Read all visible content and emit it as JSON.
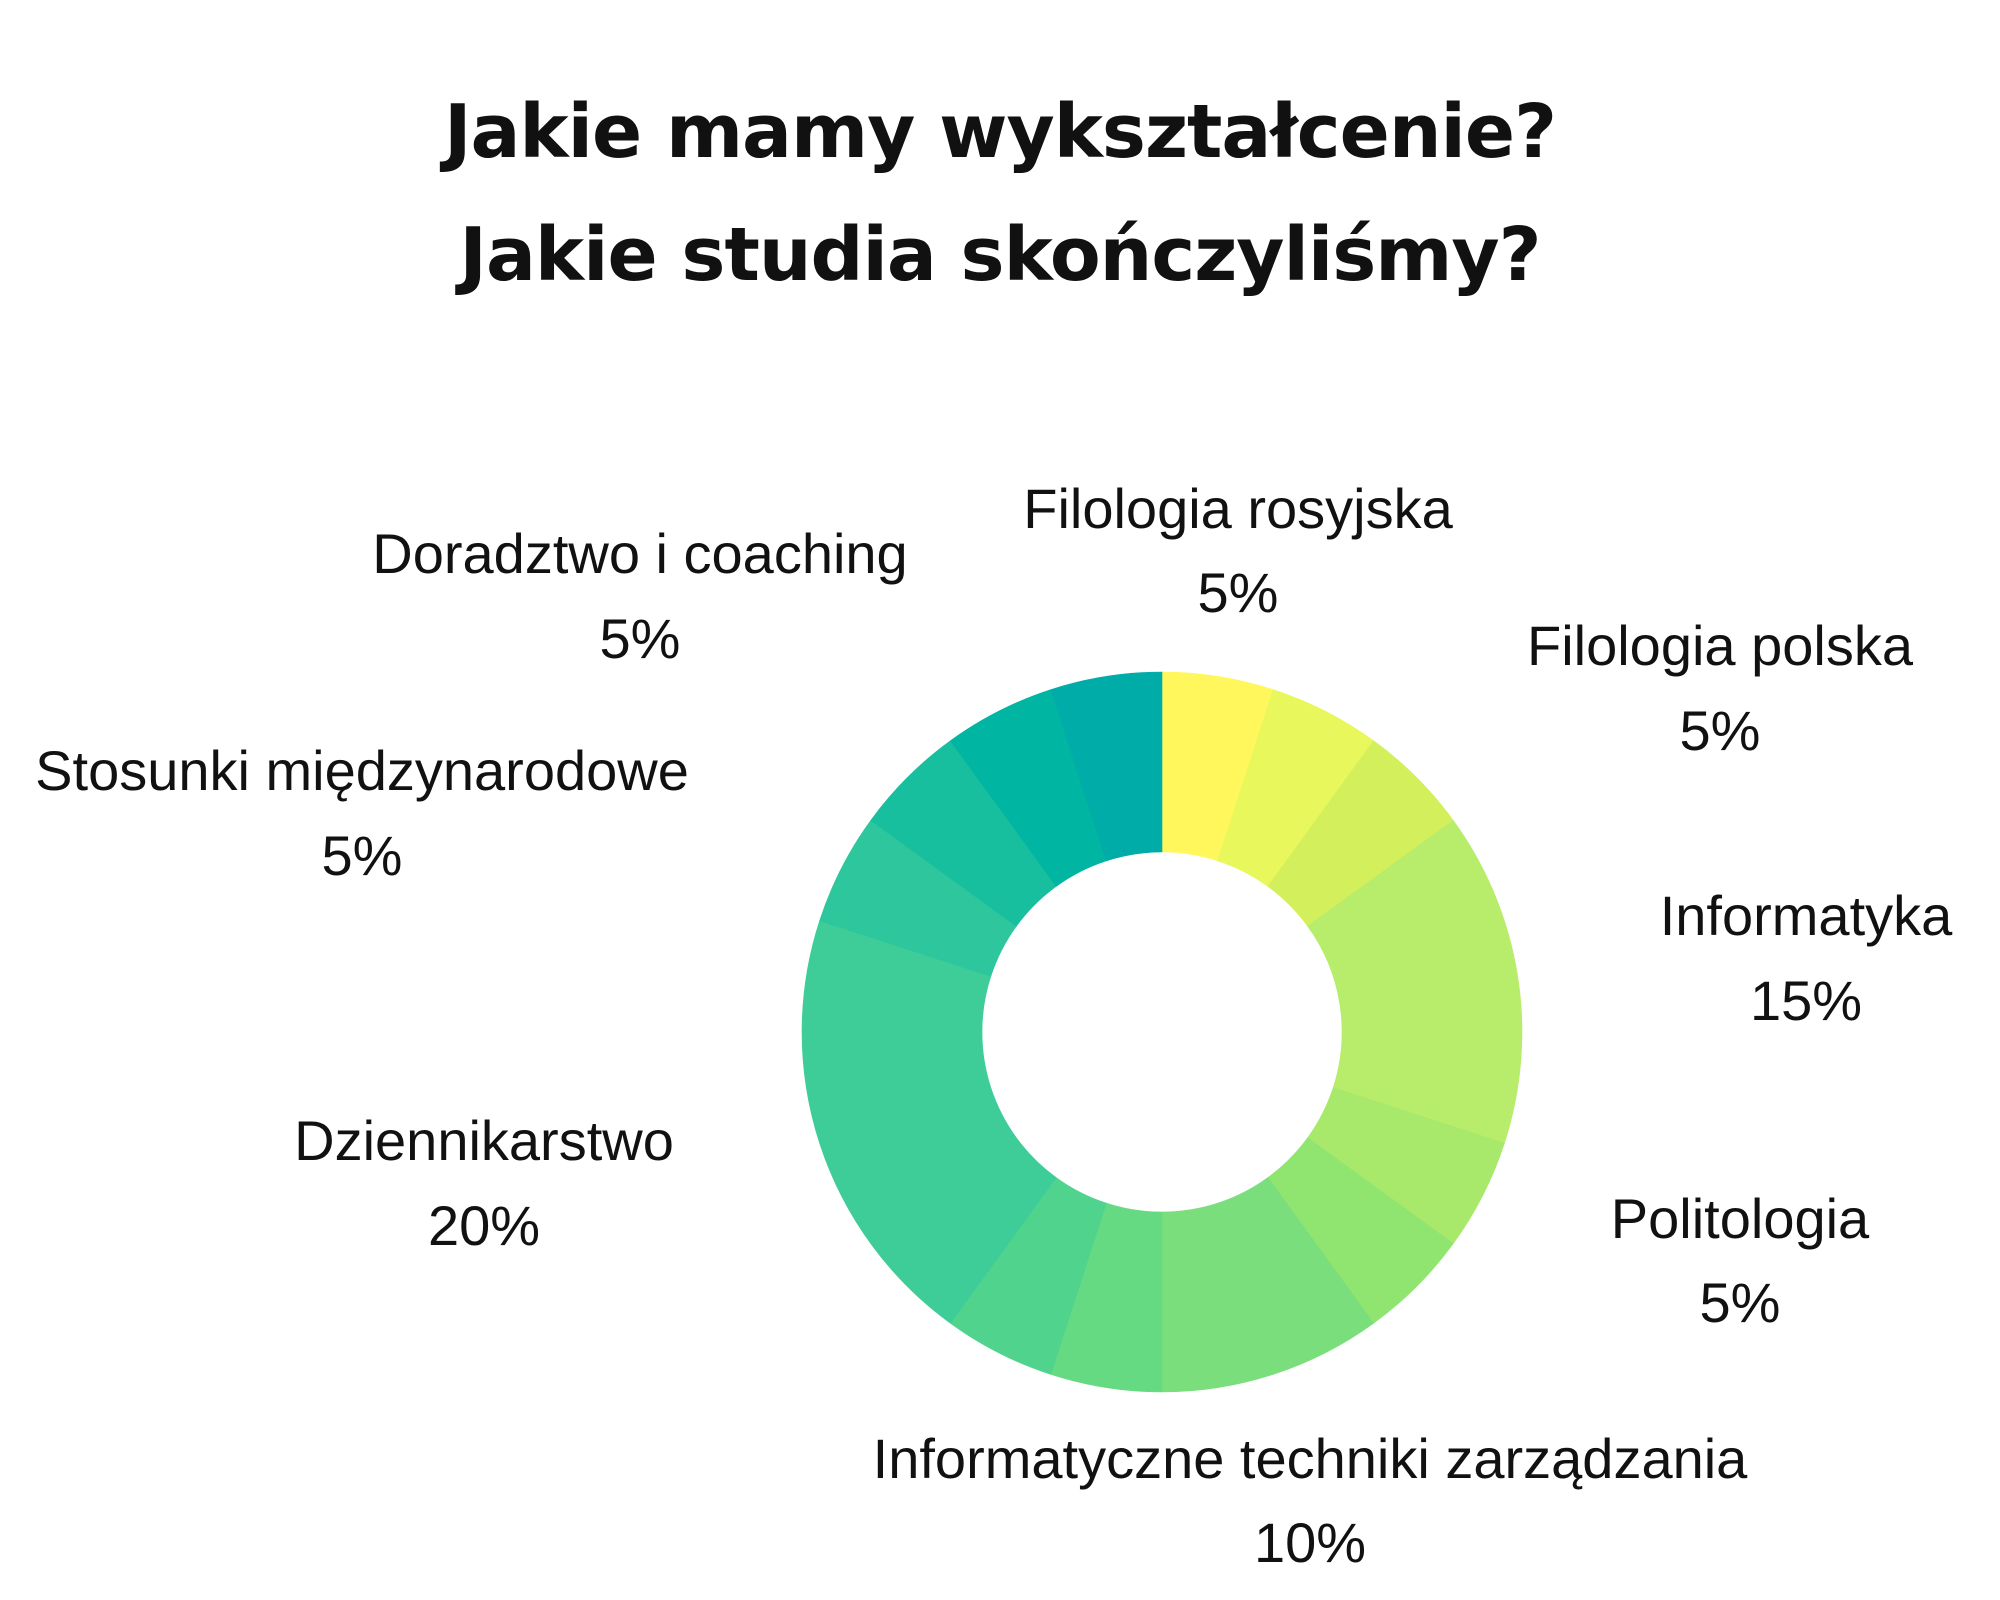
{
  "title": {
    "line1": "Jakie mamy wykształcenie?",
    "line2": "Jakie studia skończyliśmy?"
  },
  "chart_data": {
    "type": "pie",
    "style": "donut",
    "title": "Jakie mamy wykształcenie? Jakie studia skończyliśmy?",
    "slices": [
      {
        "label": "Filologia rosyjska",
        "value": 5,
        "value_label": "5%",
        "color": "#fff75c"
      },
      {
        "label": "Filologia polska",
        "value": 5,
        "value_label": "5%",
        "color": "#e8f75b"
      },
      {
        "label": "",
        "value": 5,
        "value_label": "",
        "color": "#d3f05c"
      },
      {
        "label": "Informatyka",
        "value": 15,
        "value_label": "15%",
        "color": "#b8ec6b"
      },
      {
        "label": "",
        "value": 5,
        "value_label": "",
        "color": "#a8e86a"
      },
      {
        "label": "Politologia",
        "value": 5,
        "value_label": "5%",
        "color": "#90e470"
      },
      {
        "label": "Informatyczne techniki zarządzania",
        "value": 10,
        "value_label": "10%",
        "color": "#7ade7c"
      },
      {
        "label": "",
        "value": 5,
        "value_label": "",
        "color": "#66da83"
      },
      {
        "label": "",
        "value": 5,
        "value_label": "",
        "color": "#50d38d"
      },
      {
        "label": "Dziennikarstwo",
        "value": 20,
        "value_label": "20%",
        "color": "#3ecd98"
      },
      {
        "label": "",
        "value": 5,
        "value_label": "",
        "color": "#2dc69d"
      },
      {
        "label": "Stosunki międzynarodowe",
        "value": 5,
        "value_label": "5%",
        "color": "#18bf9e"
      },
      {
        "label": "",
        "value": 5,
        "value_label": "",
        "color": "#00b5a2"
      },
      {
        "label": "Doradztwo i coaching",
        "value": 5,
        "value_label": "5%",
        "color": "#00aca8"
      }
    ]
  }
}
